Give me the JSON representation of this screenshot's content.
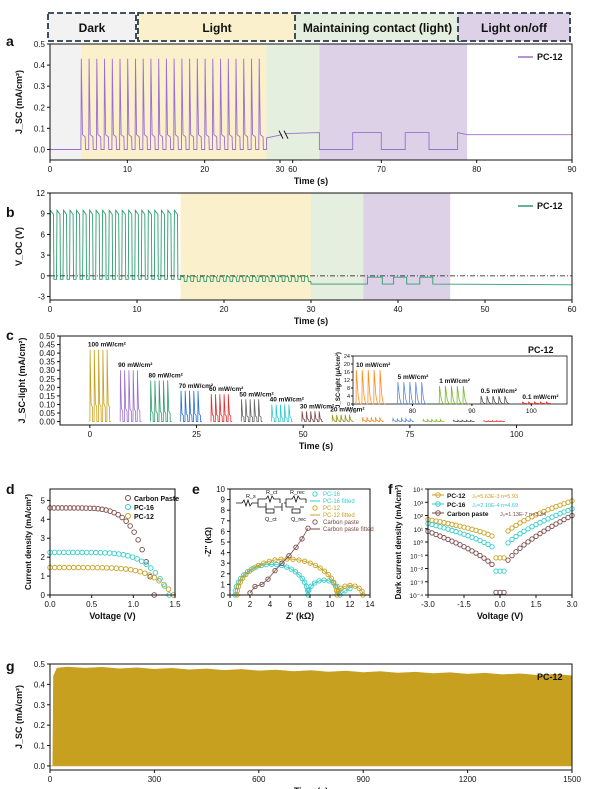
{
  "figure": {
    "top_bar": {
      "labels": [
        "Dark",
        "Light",
        "Maintaining contact (light)",
        "Light on/off"
      ],
      "colors": [
        "#f2f2f2",
        "#fbf0cc",
        "#e4efdf",
        "#ddd1e8"
      ]
    },
    "panel_labels": [
      "a",
      "b",
      "c",
      "d",
      "e",
      "f",
      "g"
    ],
    "colors": {
      "purple": "#9b6fd0",
      "green": "#2e9e6e",
      "gold": "#c8a020",
      "brown": "#7a4a48",
      "cyan": "#33cccc"
    }
  },
  "chart_data": [
    {
      "id": "a",
      "type": "line",
      "xlabel": "Time (s)",
      "ylabel": "J_SC (mA/cm²)",
      "xticks": [
        "0",
        "10",
        "20",
        "30",
        "60",
        "70",
        "80",
        "90"
      ],
      "yticks": [
        "0.0",
        "0.1",
        "0.2",
        "0.3",
        "0.4",
        "0.5"
      ],
      "ylim": [
        -0.05,
        0.5
      ],
      "series": [
        {
          "name": "PC-12",
          "color": "#9b6fd0"
        }
      ],
      "segments": {
        "dark_end_s": 4,
        "light_end_s": 28,
        "contact_end_s": 65,
        "onoff_end_s": 79,
        "pulse_peak": 0.43,
        "steady_value": 0.07,
        "onoff_high": 0.08,
        "onoff_low": 0.0
      }
    },
    {
      "id": "b",
      "type": "line",
      "xlabel": "Time (s)",
      "ylabel": "V_OC (V)",
      "xticks": [
        "0",
        "10",
        "20",
        "30",
        "40",
        "50",
        "60"
      ],
      "yticks": [
        "-3",
        "0",
        "3",
        "6",
        "9",
        "12"
      ],
      "ylim": [
        -3.5,
        12
      ],
      "series": [
        {
          "name": "PC-12",
          "color": "#2e9e6e"
        }
      ],
      "segments": {
        "pulse_end_s": 15,
        "pulse_peak": 9.5,
        "light_end_s": 30,
        "light_peak": 0,
        "contact_end_s": 36,
        "onoff_end_s": 46,
        "baseline": -0.5,
        "low_value": -1.2
      }
    },
    {
      "id": "c",
      "type": "line",
      "xlabel": "Time (s)",
      "ylabel": "J_SC-light (mA/cm²)",
      "xticks": [
        "0",
        "25",
        "50",
        "75",
        "100"
      ],
      "yticks": [
        "0.00",
        "0.05",
        "0.10",
        "0.15",
        "0.20",
        "0.25",
        "0.30",
        "0.35",
        "0.40",
        "0.45",
        "0.50"
      ],
      "ylim": [
        -0.02,
        0.5
      ],
      "title": "PC-12",
      "groups": [
        {
          "label": "100 mW/cm²",
          "peak": 0.42,
          "color": "#c8a020"
        },
        {
          "label": "90 mW/cm²",
          "peak": 0.3,
          "color": "#9b6fd0"
        },
        {
          "label": "80 mW/cm²",
          "peak": 0.24,
          "color": "#2e9e6e"
        },
        {
          "label": "70 mW/cm²",
          "peak": 0.18,
          "color": "#2a6fd1"
        },
        {
          "label": "60 mW/cm²",
          "peak": 0.16,
          "color": "#e03030"
        },
        {
          "label": "50 mW/cm²",
          "peak": 0.13,
          "color": "#666666"
        },
        {
          "label": "40 mW/cm²",
          "peak": 0.1,
          "color": "#33cccc"
        },
        {
          "label": "30 mW/cm²",
          "peak": 0.06,
          "color": "#7a4a48"
        },
        {
          "label": "20 mW/cm²",
          "peak": 0.04,
          "color": "#9a9a20"
        },
        {
          "label": "",
          "peak": 0.025,
          "color": "#ff8c20"
        },
        {
          "label": "",
          "peak": 0.018,
          "color": "#5b8fd9"
        },
        {
          "label": "",
          "peak": 0.012,
          "color": "#7ab830"
        },
        {
          "label": "",
          "peak": 0.008,
          "color": "#555555"
        },
        {
          "label": "",
          "peak": 0.005,
          "color": "#e03030"
        }
      ],
      "inset": {
        "ylabel": "J_SC-light (μA/cm²)",
        "xticks": [
          "70",
          "80",
          "90",
          "100"
        ],
        "yticks": [
          "0",
          "4",
          "8",
          "12",
          "16",
          "20",
          "24"
        ],
        "ylim": [
          0,
          24
        ],
        "groups": [
          {
            "label": "10 mW/cm²",
            "peak": 17,
            "color": "#ff8c20"
          },
          {
            "label": "5 mW/cm²",
            "peak": 11,
            "color": "#5b8fd9"
          },
          {
            "label": "1 mW/cm²",
            "peak": 9,
            "color": "#7ab830"
          },
          {
            "label": "0.5 mW/cm²",
            "peak": 4,
            "color": "#555555"
          },
          {
            "label": "0.1 mW/cm²",
            "peak": 1,
            "color": "#e03030"
          }
        ]
      }
    },
    {
      "id": "d",
      "type": "scatter",
      "xlabel": "Voltage (V)",
      "ylabel": "Current density (mA/cm²)",
      "xticks": [
        "0.0",
        "0.5",
        "1.0",
        "1.5"
      ],
      "yticks": [
        "0",
        "1",
        "2",
        "3",
        "4",
        "5"
      ],
      "xlim": [
        0,
        1.5
      ],
      "ylim": [
        0,
        5.6
      ],
      "series": [
        {
          "name": "Carbon Paste",
          "color": "#7a4a48",
          "jsc": 4.6,
          "voc": 1.25
        },
        {
          "name": "PC-16",
          "color": "#33cccc",
          "jsc": 2.25,
          "voc": 1.43
        },
        {
          "name": "PC-12",
          "color": "#c8a020",
          "jsc": 1.45,
          "voc": 1.48
        }
      ]
    },
    {
      "id": "e",
      "type": "scatter",
      "xlabel": "Z' (kΩ)",
      "ylabel": "-Z'' (kΩ)",
      "xticks": [
        "0",
        "2",
        "4",
        "6",
        "8",
        "10",
        "12",
        "14"
      ],
      "yticks": [
        "0",
        "1",
        "2",
        "3",
        "4",
        "5",
        "6",
        "7",
        "8",
        "9",
        "10"
      ],
      "xlim": [
        0,
        14
      ],
      "ylim": [
        0,
        10
      ],
      "circuit": {
        "r1": "R_s",
        "r2": "R_ct",
        "r3": "R_rec",
        "q1": "Q_ct",
        "q2": "Q_rec"
      },
      "series": [
        {
          "name": "PC-16",
          "color": "#33cccc"
        },
        {
          "name": "PC-16 fitted",
          "color": "#33cccc"
        },
        {
          "name": "PC-12",
          "color": "#c8a020"
        },
        {
          "name": "PC-12 fitted",
          "color": "#c8a020"
        },
        {
          "name": "Carbon paste",
          "color": "#7a4a48"
        },
        {
          "name": "Carbon paste fitted",
          "color": "#7a4a48"
        }
      ]
    },
    {
      "id": "f",
      "type": "scatter",
      "xlabel": "Voltage (V)",
      "ylabel": "Dark current density (mA/cm²)",
      "xticks": [
        "-3.0",
        "-1.5",
        "0.0",
        "1.5",
        "3.0"
      ],
      "yticks": [
        "10⁻⁴",
        "10⁻³",
        "10⁻²",
        "10⁻¹",
        "10⁰",
        "10¹",
        "10²",
        "10³",
        "10⁴"
      ],
      "xlim": [
        -3,
        3
      ],
      "ylim_log10": [
        -4,
        4
      ],
      "series": [
        {
          "name": "PC-12",
          "fit": "J₀=5.63E-3 n=5.93",
          "color": "#c8a020"
        },
        {
          "name": "PC-16",
          "fit": "J₀=2.10E-4 n=4.69",
          "color": "#33cccc"
        },
        {
          "name": "Carbon paste",
          "fit": "J₀=1.13E-7 n=3.34",
          "color": "#7a4a48"
        }
      ]
    },
    {
      "id": "g",
      "type": "area",
      "xlabel": "Time (s)",
      "ylabel": "J_SC (mA/cm²)",
      "xticks": [
        "0",
        "300",
        "600",
        "900",
        "1200",
        "1500"
      ],
      "yticks": [
        "0.0",
        "0.1",
        "0.2",
        "0.3",
        "0.4",
        "0.5"
      ],
      "xlim": [
        0,
        1500
      ],
      "ylim": [
        -0.02,
        0.5
      ],
      "series": [
        {
          "name": "PC-12",
          "color": "#c8a020",
          "start_value": 0.485,
          "end_value": 0.445
        }
      ]
    }
  ]
}
